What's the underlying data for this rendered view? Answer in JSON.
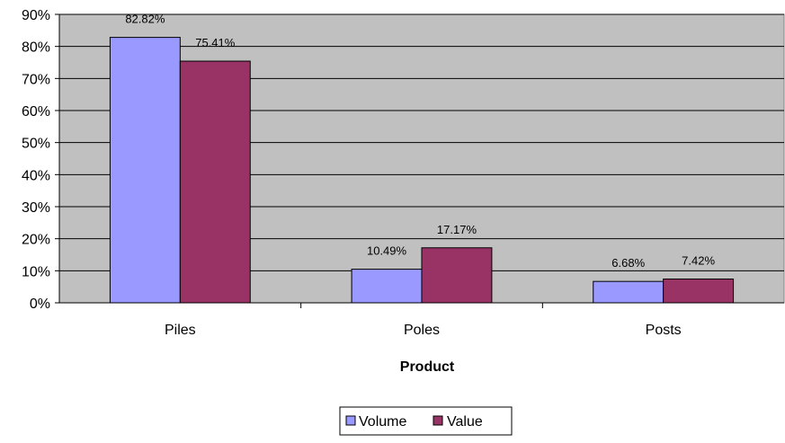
{
  "chart_data": {
    "type": "bar",
    "title": "",
    "xlabel": "Product",
    "ylabel": "",
    "categories": [
      "Piles",
      "Poles",
      "Posts"
    ],
    "series": [
      {
        "name": "Volume",
        "color": "#9999ff",
        "values": [
          82.82,
          10.49,
          6.68
        ],
        "labels": [
          "82.82%",
          "10.49%",
          "6.68%"
        ]
      },
      {
        "name": "Value",
        "color": "#993366",
        "values": [
          75.41,
          17.17,
          7.42
        ],
        "labels": [
          "75.41%",
          "17.17%",
          "7.42%"
        ]
      }
    ],
    "ylim": [
      0,
      90
    ],
    "y_ticks": [
      0,
      10,
      20,
      30,
      40,
      50,
      60,
      70,
      80,
      90
    ],
    "y_tick_labels": [
      "0%",
      "10%",
      "20%",
      "30%",
      "40%",
      "50%",
      "60%",
      "70%",
      "80%",
      "90%"
    ],
    "grid": true,
    "plot_background": "#c0c0c0",
    "legend_position": "bottom"
  }
}
